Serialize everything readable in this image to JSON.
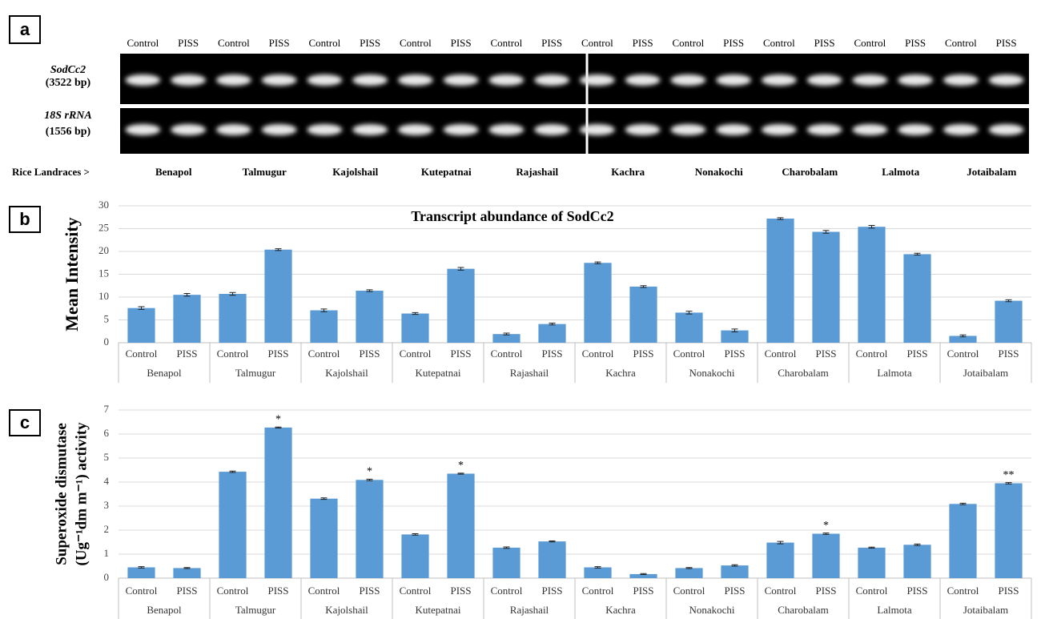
{
  "gel": {
    "panel": "a",
    "lanes": [
      "Control",
      "PISS",
      "Control",
      "PISS",
      "Control",
      "PISS",
      "Control",
      "PISS",
      "Control",
      "PISS",
      "Control",
      "PISS",
      "Control",
      "PISS",
      "Control",
      "PISS",
      "Control",
      "PISS",
      "Control",
      "PISS"
    ],
    "genes": [
      {
        "name": "SodCc2",
        "size": "(3522 bp)"
      },
      {
        "name": "18S rRNA",
        "size": "(1556 bp)"
      }
    ],
    "row_label": "Rice Landraces >",
    "landraces": [
      "Benapol",
      "Talmugur",
      "Kajolshail",
      "Kutepatnai",
      "Rajashail",
      "Kachra",
      "Nonakochi",
      "Charobalam",
      "Lalmota",
      "Jotaibalam"
    ]
  },
  "chart_data": [
    {
      "type": "bar",
      "panel": "b",
      "title": "Transcript abundance of SodCc2",
      "y_label": "Mean Intensity",
      "groups": [
        "Benapol",
        "Talmugur",
        "Kajolshail",
        "Kutepatnai",
        "Rajashail",
        "Kachra",
        "Nonakochi",
        "Charobalam",
        "Lalmota",
        "Jotaibalam"
      ],
      "categories": [
        "Control",
        "PISS",
        "Control",
        "PISS",
        "Control",
        "PISS",
        "Control",
        "PISS",
        "Control",
        "PISS",
        "Control",
        "PISS",
        "Control",
        "PISS",
        "Control",
        "PISS",
        "Control",
        "PISS",
        "Control",
        "PISS"
      ],
      "values": [
        7.6,
        10.5,
        10.7,
        20.4,
        7.1,
        11.4,
        6.4,
        16.2,
        1.9,
        4.1,
        17.5,
        12.3,
        6.6,
        2.7,
        27.2,
        24.3,
        25.4,
        19.4,
        1.5,
        9.2
      ],
      "errors": [
        0.3,
        0.3,
        0.3,
        0.2,
        0.3,
        0.2,
        0.2,
        0.3,
        0.2,
        0.2,
        0.2,
        0.2,
        0.3,
        0.3,
        0.2,
        0.3,
        0.3,
        0.2,
        0.2,
        0.2
      ],
      "color": "#5b9bd5",
      "ylim": [
        0,
        30
      ],
      "yticks": [
        0,
        5,
        10,
        15,
        20,
        25,
        30
      ],
      "grid": true
    },
    {
      "type": "bar",
      "panel": "c",
      "y_label": [
        "Superoxide dismutase",
        "(Ug⁻¹dm m⁻¹) activity"
      ],
      "groups": [
        "Benapol",
        "Talmugur",
        "Kajolshail",
        "Kutepatnai",
        "Rajashail",
        "Kachra",
        "Nonakochi",
        "Charobalam",
        "Lalmota",
        "Jotaibalam"
      ],
      "categories": [
        "Control",
        "PISS",
        "Control",
        "PISS",
        "Control",
        "PISS",
        "Control",
        "PISS",
        "Control",
        "PISS",
        "Control",
        "PISS",
        "Control",
        "PISS",
        "Control",
        "PISS",
        "Control",
        "PISS",
        "Control",
        "PISS"
      ],
      "values": [
        0.45,
        0.42,
        4.43,
        6.27,
        3.31,
        4.09,
        1.82,
        4.35,
        1.27,
        1.53,
        0.45,
        0.17,
        0.42,
        0.53,
        1.48,
        1.85,
        1.27,
        1.39,
        3.09,
        3.95
      ],
      "errors": [
        0.03,
        0.02,
        0.03,
        0.02,
        0.03,
        0.03,
        0.03,
        0.02,
        0.03,
        0.02,
        0.03,
        0.02,
        0.02,
        0.03,
        0.05,
        0.03,
        0.02,
        0.03,
        0.03,
        0.03
      ],
      "significance": [
        null,
        null,
        null,
        "*",
        null,
        "*",
        null,
        "*",
        null,
        null,
        null,
        null,
        null,
        null,
        null,
        "*",
        null,
        null,
        null,
        "**"
      ],
      "color": "#5b9bd5",
      "ylim": [
        0,
        7
      ],
      "yticks": [
        0,
        1,
        2,
        3,
        4,
        5,
        6,
        7
      ],
      "grid": true
    }
  ]
}
